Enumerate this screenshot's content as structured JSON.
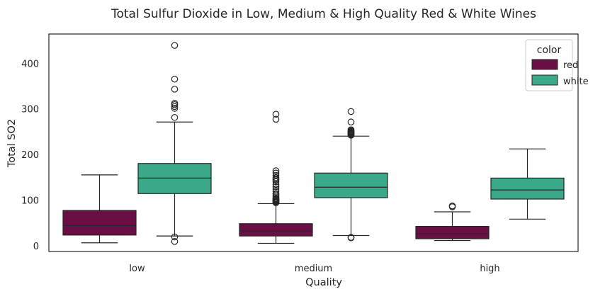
{
  "chart_data": {
    "type": "boxplot",
    "title": "Total Sulfur Dioxide in Low, Medium & High Quality Red & White Wines",
    "xlabel": "Quality",
    "ylabel": "Total SO2",
    "categories": [
      "low",
      "medium",
      "high"
    ],
    "y_ticks": [
      "0",
      "100",
      "200",
      "300",
      "400"
    ],
    "ylim": [
      -12,
      465
    ],
    "grid": false,
    "legend": {
      "title": "color",
      "placement": "top-right"
    },
    "series": [
      {
        "name": "red",
        "color": "#6a0f45",
        "boxes": [
          {
            "category": "low",
            "whisker_low": 7,
            "q1": 24,
            "median": 45,
            "q3": 78,
            "whisker_high": 156,
            "outliers": []
          },
          {
            "category": "medium",
            "whisker_low": 6,
            "q1": 22,
            "median": 33,
            "q3": 49,
            "whisker_high": 93,
            "outliers": [
              95,
              96,
              97,
              98,
              99,
              100,
              101,
              102,
              103,
              104,
              105,
              108,
              112,
              115,
              120,
              125,
              130,
              135,
              141,
              145,
              147,
              150,
              155,
              160,
              165,
              278,
              289
            ]
          },
          {
            "category": "high",
            "whisker_low": 12,
            "q1": 16,
            "median": 27,
            "q3": 43,
            "whisker_high": 75,
            "outliers": [
              86,
              88
            ]
          }
        ]
      },
      {
        "name": "white",
        "color": "#3ba88a",
        "boxes": [
          {
            "category": "low",
            "whisker_low": 22,
            "q1": 115,
            "median": 149,
            "q3": 181,
            "whisker_high": 272,
            "outliers": [
              10,
              20,
              282,
              302,
              306,
              310,
              313,
              344,
              366,
              440
            ]
          },
          {
            "category": "medium",
            "whisker_low": 23,
            "q1": 106,
            "median": 129,
            "q3": 160,
            "whisker_high": 241,
            "outliers": [
              18,
              19,
              243,
              244,
              245,
              246,
              247,
              248,
              249,
              250,
              251,
              252,
              253,
              255,
              272,
              295
            ]
          },
          {
            "category": "high",
            "whisker_low": 59,
            "q1": 103,
            "median": 123,
            "q3": 149,
            "whisker_high": 213,
            "outliers": []
          }
        ]
      }
    ]
  }
}
